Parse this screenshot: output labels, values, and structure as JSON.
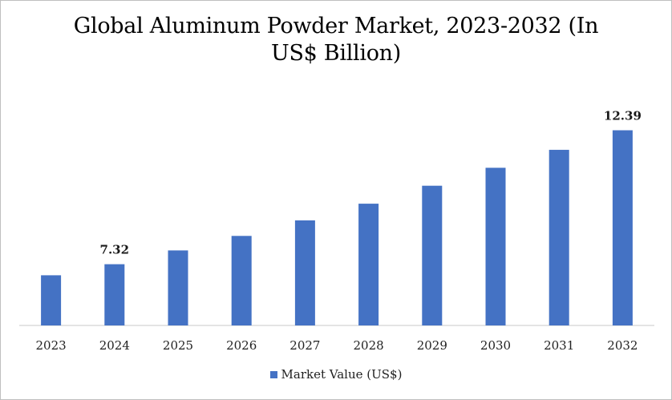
{
  "chart_data": {
    "type": "bar",
    "title": "Global Aluminum Powder Market, 2023-2032 (In US$ Billion)",
    "categories": [
      "2023",
      "2024",
      "2025",
      "2026",
      "2027",
      "2028",
      "2029",
      "2030",
      "2031",
      "2032"
    ],
    "series": [
      {
        "name": "Market Value (US$)",
        "values": [
          6.9,
          7.32,
          7.84,
          8.39,
          8.98,
          9.61,
          10.29,
          10.97,
          11.65,
          12.39
        ],
        "color": "#4472c4"
      }
    ],
    "data_labels": [
      {
        "category": "2024",
        "text": "7.32"
      },
      {
        "category": "2032",
        "text": "12.39"
      }
    ],
    "ylim": [
      5.0,
      12.8
    ],
    "y_axis_visible": false,
    "grid": false,
    "legend": "bottom"
  }
}
